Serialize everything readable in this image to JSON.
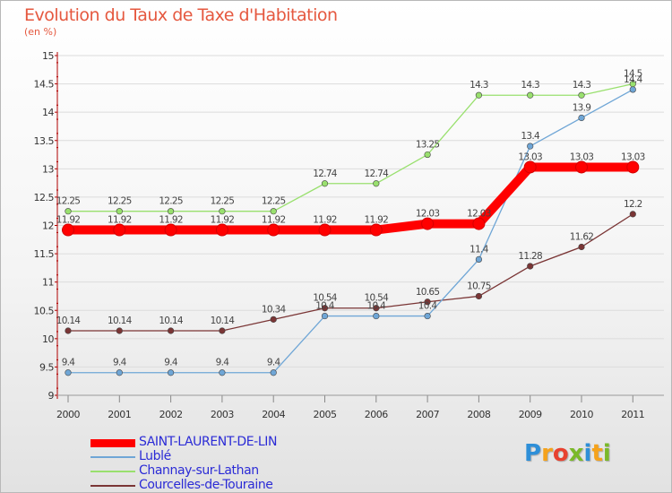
{
  "header": {
    "title": "Evolution du Taux de Taxe d'Habitation",
    "subtitle": "(en %)"
  },
  "logo": {
    "text": "Proxiti",
    "letters": [
      {
        "ch": "P",
        "color": "#2e8fd8"
      },
      {
        "ch": "r",
        "color": "#f5a21b"
      },
      {
        "ch": "o",
        "color": "#e8412f"
      },
      {
        "ch": "x",
        "color": "#7ab929"
      },
      {
        "ch": "i",
        "color": "#2e8fd8"
      },
      {
        "ch": "t",
        "color": "#f5a21b"
      },
      {
        "ch": "i",
        "color": "#7ab929"
      }
    ]
  },
  "chart_data": {
    "type": "line",
    "title": "Evolution du Taux de Taxe d'Habitation",
    "ylabel": "(en %)",
    "xlabel": "",
    "x": [
      "2000",
      "2001",
      "2002",
      "2003",
      "2004",
      "2005",
      "2006",
      "2007",
      "2008",
      "2009",
      "2010",
      "2011"
    ],
    "ylim": [
      9,
      15
    ],
    "yticks": [
      "9",
      "9.5",
      "10",
      "10.5",
      "11",
      "11.5",
      "12",
      "12.5",
      "13",
      "13.5",
      "14",
      "14.5",
      "15"
    ],
    "grid": true,
    "legend_position": "bottom-left",
    "series": [
      {
        "name": "SAINT-LAURENT-DE-LIN",
        "color": "#ff0000",
        "values": [
          11.92,
          11.92,
          11.92,
          11.92,
          11.92,
          11.92,
          11.92,
          12.03,
          12.03,
          13.03,
          13.03,
          13.03
        ],
        "labels": [
          "11.92",
          "11.92",
          "11.92",
          "11.92",
          "11.92",
          "11.92",
          "11.92",
          "12.03",
          "12.03",
          "13.03",
          "13.03",
          "13.03"
        ]
      },
      {
        "name": "Lublé",
        "color": "#6fa6d6",
        "values": [
          9.4,
          9.4,
          9.4,
          9.4,
          9.4,
          10.4,
          10.4,
          10.4,
          11.4,
          13.4,
          13.9,
          14.4
        ],
        "labels": [
          "9.4",
          "9.4",
          "9.4",
          "9.4",
          "9.4",
          "10.4",
          "10.4",
          "10.4",
          "11.4",
          "13.4",
          "13.9",
          "14.4"
        ]
      },
      {
        "name": "Channay-sur-Lathan",
        "color": "#99e06e",
        "values": [
          12.25,
          12.25,
          12.25,
          12.25,
          12.25,
          12.74,
          12.74,
          13.25,
          14.3,
          14.3,
          14.3,
          14.5
        ],
        "labels": [
          "12.25",
          "12.25",
          "12.25",
          "12.25",
          "12.25",
          "12.74",
          "12.74",
          "13.25",
          "14.3",
          "14.3",
          "14.3",
          "14.5"
        ]
      },
      {
        "name": "Courcelles-de-Touraine",
        "color": "#7a3535",
        "values": [
          10.14,
          10.14,
          10.14,
          10.14,
          10.34,
          10.54,
          10.54,
          10.65,
          10.75,
          11.28,
          11.62,
          12.2
        ],
        "labels": [
          "10.14",
          "10.14",
          "10.14",
          "10.14",
          "10.34",
          "10.54",
          "10.54",
          "10.65",
          "10.75",
          "11.28",
          "11.62",
          "12.2"
        ]
      }
    ]
  }
}
